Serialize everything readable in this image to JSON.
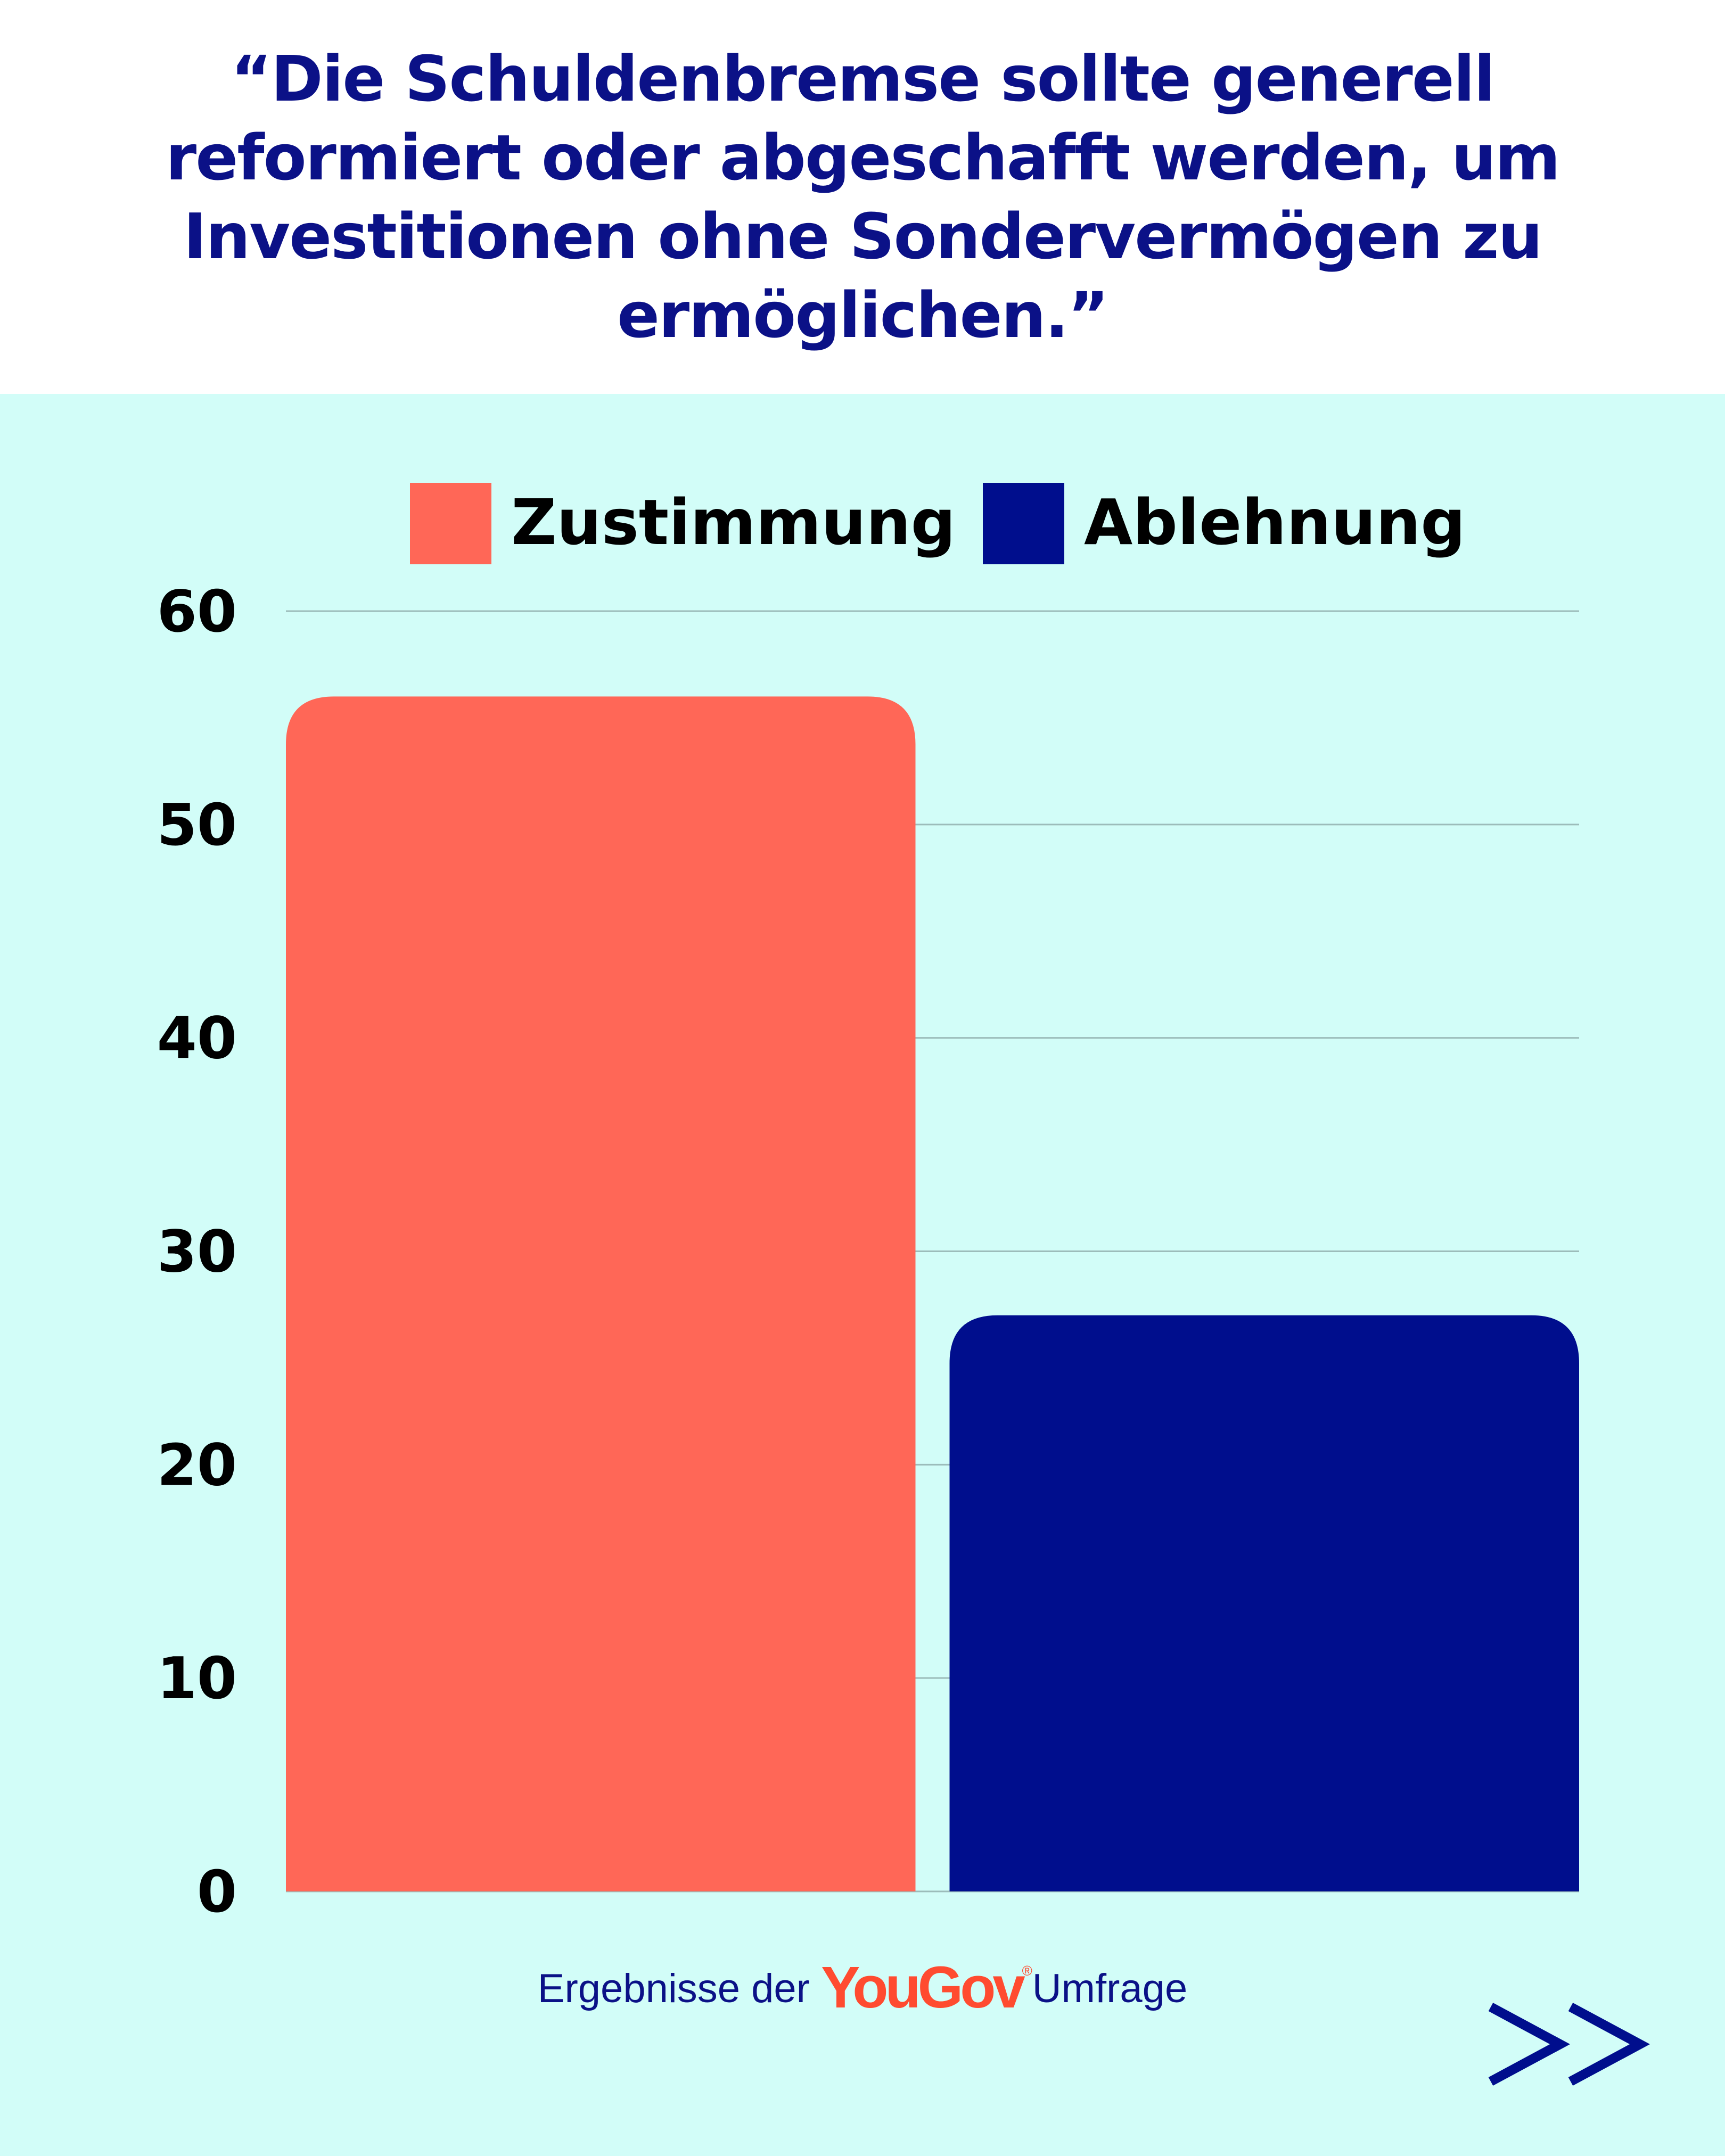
{
  "title": "“Die Schuldenbremse sollte generell reformiert oder abgeschafft werden, um Investitionen ohne Sondervermögen zu ermöglichen.”",
  "footer": {
    "prefix": "Ergebnisse der",
    "brand": "YouGov",
    "brand_mark": "®",
    "suffix": "Umfrage"
  },
  "next_icon": "double-chevron-right-icon",
  "colors": {
    "background": "#d2fdf8",
    "title": "#0b1187",
    "zustimmung": "#ff6757",
    "ablehnung": "#000e8d",
    "grid": "#9cbcba"
  },
  "chart_data": {
    "type": "bar",
    "categories": [
      "Zustimmung",
      "Ablehnung"
    ],
    "series": [
      {
        "name": "Zustimmung",
        "values": [
          56,
          null
        ]
      },
      {
        "name": "Ablehnung",
        "values": [
          null,
          27
        ]
      }
    ],
    "values": [
      56,
      27
    ],
    "ylim": [
      0,
      60
    ],
    "yticks": [
      0,
      10,
      20,
      30,
      40,
      50,
      60
    ],
    "grid": true,
    "legend_position": "top",
    "legend": [
      "Zustimmung",
      "Ablehnung"
    ]
  }
}
